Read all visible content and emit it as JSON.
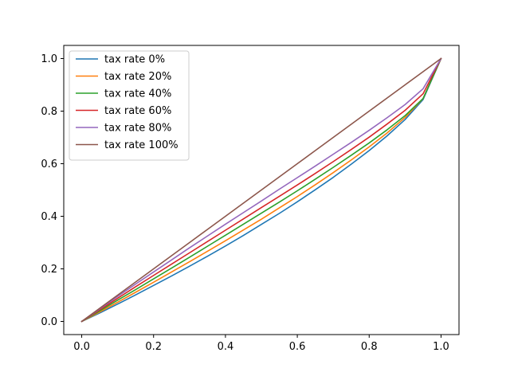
{
  "chart_data": {
    "type": "line",
    "title": "",
    "xlabel": "",
    "ylabel": "",
    "xlim": [
      -0.05,
      1.05
    ],
    "ylim": [
      -0.05,
      1.05
    ],
    "x_ticks": [
      0.0,
      0.2,
      0.4,
      0.6,
      0.8,
      1.0
    ],
    "x_tick_labels": [
      "0.0",
      "0.2",
      "0.4",
      "0.6",
      "0.8",
      "1.0"
    ],
    "y_ticks": [
      0.0,
      0.2,
      0.4,
      0.6,
      0.8,
      1.0
    ],
    "y_tick_labels": [
      "0.0",
      "0.2",
      "0.4",
      "0.6",
      "0.8",
      "1.0"
    ],
    "grid": false,
    "legend_position": "top-left",
    "x": [
      0.0,
      0.05,
      0.1,
      0.15,
      0.2,
      0.25,
      0.3,
      0.35,
      0.4,
      0.45,
      0.5,
      0.55,
      0.6,
      0.65,
      0.7,
      0.75,
      0.8,
      0.85,
      0.9,
      0.95,
      1.0
    ],
    "series": [
      {
        "name": "tax rate 0%",
        "color": "#1f77b4",
        "values": [
          0.0,
          0.032,
          0.066,
          0.101,
          0.137,
          0.173,
          0.21,
          0.248,
          0.287,
          0.327,
          0.369,
          0.411,
          0.455,
          0.501,
          0.548,
          0.598,
          0.65,
          0.706,
          0.768,
          0.844,
          1.0
        ]
      },
      {
        "name": "tax rate 20%",
        "color": "#ff7f0e",
        "values": [
          0.0,
          0.036,
          0.073,
          0.111,
          0.149,
          0.188,
          0.227,
          0.267,
          0.307,
          0.348,
          0.389,
          0.432,
          0.475,
          0.52,
          0.566,
          0.614,
          0.664,
          0.717,
          0.776,
          0.848,
          1.0
        ]
      },
      {
        "name": "tax rate 40%",
        "color": "#2ca02c",
        "values": [
          0.0,
          0.04,
          0.081,
          0.121,
          0.162,
          0.203,
          0.244,
          0.286,
          0.328,
          0.37,
          0.412,
          0.454,
          0.497,
          0.541,
          0.586,
          0.632,
          0.679,
          0.729,
          0.783,
          0.848,
          1.0
        ]
      },
      {
        "name": "tax rate 60%",
        "color": "#d62728",
        "values": [
          0.0,
          0.044,
          0.088,
          0.132,
          0.175,
          0.218,
          0.261,
          0.304,
          0.347,
          0.39,
          0.433,
          0.476,
          0.519,
          0.563,
          0.608,
          0.654,
          0.701,
          0.751,
          0.803,
          0.866,
          1.0
        ]
      },
      {
        "name": "tax rate 80%",
        "color": "#9467bd",
        "values": [
          0.0,
          0.048,
          0.095,
          0.142,
          0.188,
          0.234,
          0.28,
          0.325,
          0.37,
          0.414,
          0.458,
          0.503,
          0.547,
          0.591,
          0.636,
          0.681,
          0.727,
          0.775,
          0.825,
          0.885,
          1.0
        ]
      },
      {
        "name": "tax rate 100%",
        "color": "#8c564b",
        "values": [
          0.0,
          0.05,
          0.1,
          0.15,
          0.2,
          0.25,
          0.3,
          0.35,
          0.4,
          0.45,
          0.5,
          0.55,
          0.6,
          0.65,
          0.7,
          0.75,
          0.8,
          0.85,
          0.9,
          0.95,
          1.0
        ]
      }
    ]
  }
}
